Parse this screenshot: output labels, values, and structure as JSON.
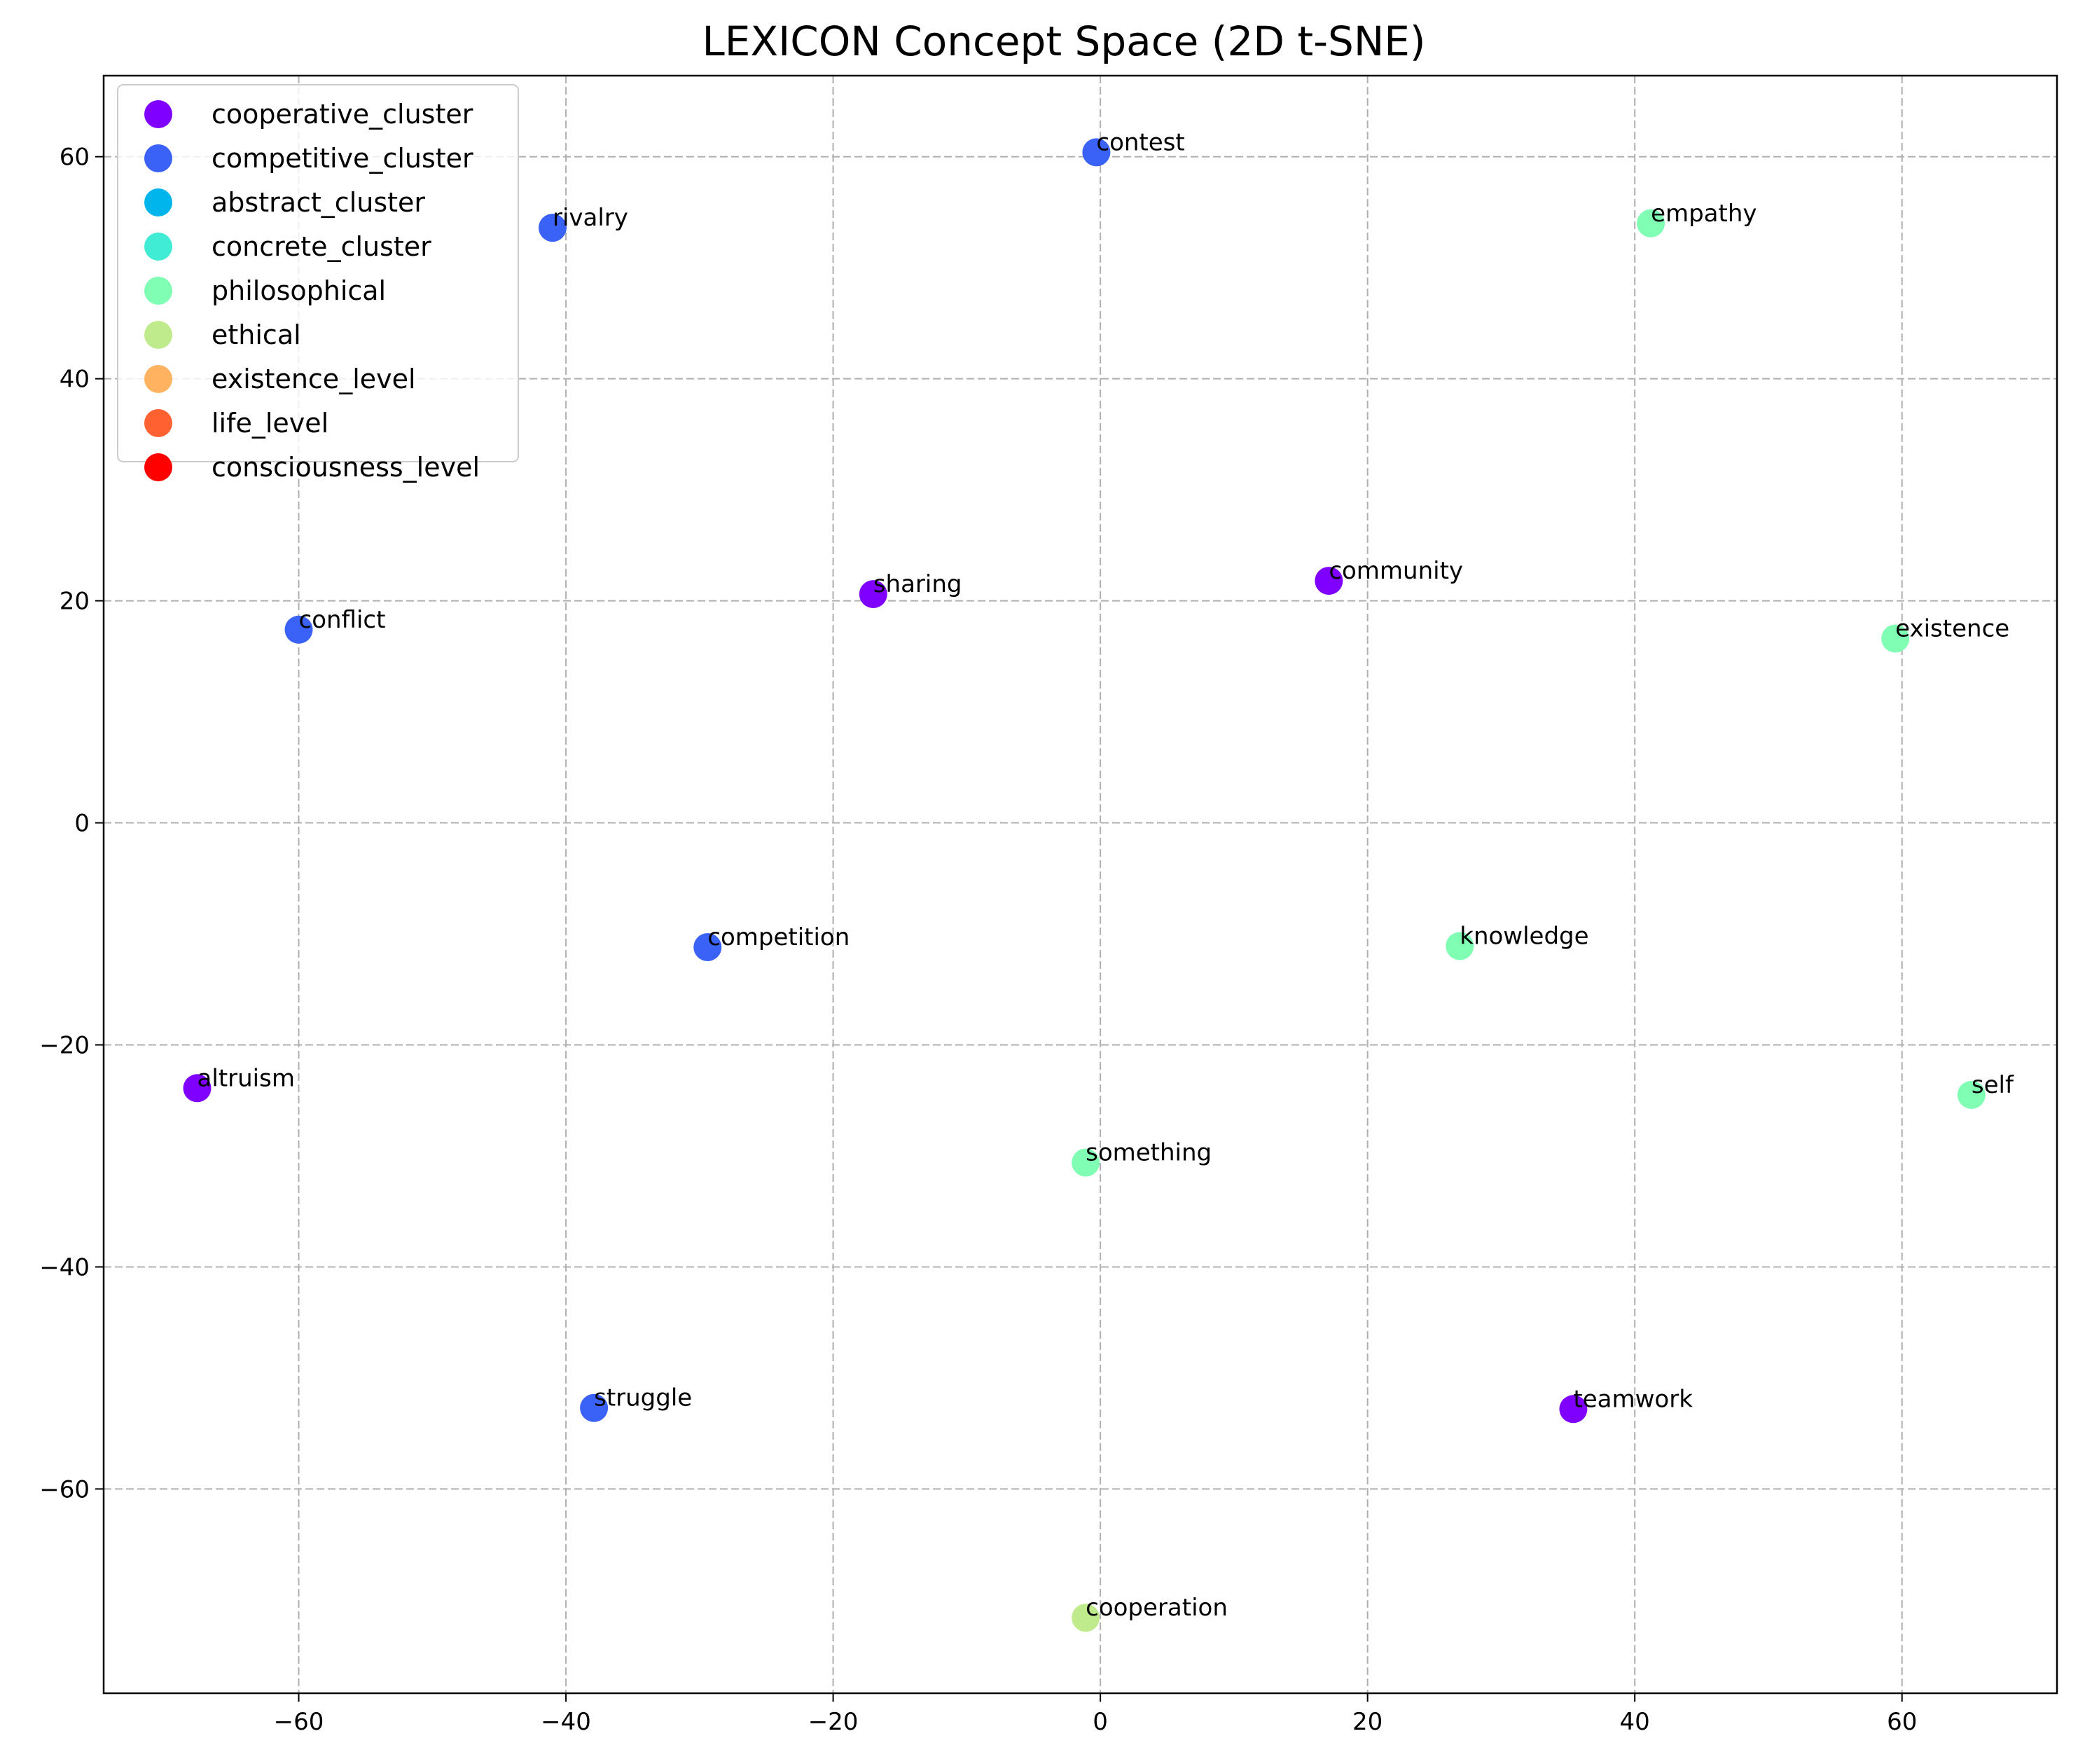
{
  "chart_data": {
    "type": "scatter",
    "title": "LEXICON Concept Space (2D t-SNE)",
    "xlabel": "",
    "ylabel": "",
    "xlim": [
      -74.6,
      71.6
    ],
    "ylim": [
      -78.4,
      67.3
    ],
    "xticks": [
      -60,
      -40,
      -20,
      0,
      20,
      40,
      60
    ],
    "yticks": [
      -60,
      -40,
      -20,
      0,
      20,
      40,
      60
    ],
    "xtick_labels": [
      "−60",
      "−40",
      "−20",
      "0",
      "20",
      "40",
      "60"
    ],
    "ytick_labels": [
      "−60",
      "−40",
      "−20",
      "0",
      "20",
      "40",
      "60"
    ],
    "grid": true,
    "legend_position": "upper left",
    "series": [
      {
        "name": "cooperative_cluster",
        "color": "#8000ff",
        "points": [
          {
            "label": "sharing",
            "x": -17.0,
            "y": 20.6
          },
          {
            "label": "community",
            "x": 17.1,
            "y": 21.8
          },
          {
            "label": "altruism",
            "x": -67.6,
            "y": -23.9
          },
          {
            "label": "teamwork",
            "x": 35.4,
            "y": -52.8
          }
        ]
      },
      {
        "name": "competitive_cluster",
        "color": "#3b62f6",
        "points": [
          {
            "label": "contest",
            "x": -0.3,
            "y": 60.4
          },
          {
            "label": "rivalry",
            "x": -41.0,
            "y": 53.6
          },
          {
            "label": "conflict",
            "x": -60.0,
            "y": 17.4
          },
          {
            "label": "competition",
            "x": -29.4,
            "y": -11.2
          },
          {
            "label": "struggle",
            "x": -37.9,
            "y": -52.7
          }
        ]
      },
      {
        "name": "abstract_cluster",
        "color": "#00b4ec",
        "points": []
      },
      {
        "name": "concrete_cluster",
        "color": "#40ecd4",
        "points": []
      },
      {
        "name": "philosophical",
        "color": "#80feb3",
        "points": [
          {
            "label": "empathy",
            "x": 41.2,
            "y": 54.0
          },
          {
            "label": "existence",
            "x": 59.5,
            "y": 16.6
          },
          {
            "label": "knowledge",
            "x": 26.9,
            "y": -11.1
          },
          {
            "label": "self",
            "x": 65.2,
            "y": -24.5
          },
          {
            "label": "something",
            "x": -1.1,
            "y": -30.6
          }
        ]
      },
      {
        "name": "ethical",
        "color": "#c0eb8d",
        "points": [
          {
            "label": "cooperation",
            "x": -1.1,
            "y": -71.6
          }
        ]
      },
      {
        "name": "existence_level",
        "color": "#ffb360",
        "points": []
      },
      {
        "name": "life_level",
        "color": "#ff6230",
        "points": []
      },
      {
        "name": "consciousness_level",
        "color": "#ff0000",
        "points": []
      }
    ]
  }
}
